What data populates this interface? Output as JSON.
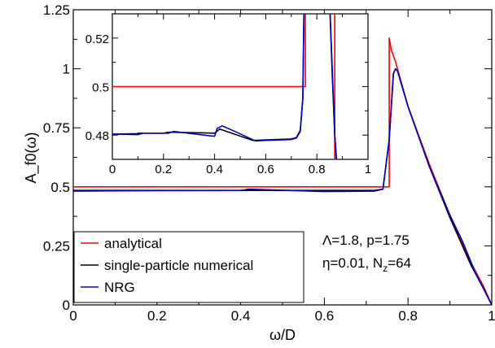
{
  "chart_data": {
    "type": "line",
    "xlabel": "ω/D",
    "ylabel": "A_f0(ω)",
    "xlim": [
      0,
      1
    ],
    "ylim": [
      0,
      1.25
    ],
    "xticks": [
      "0",
      "0.2",
      "0.4",
      "0.6",
      "0.8",
      "1"
    ],
    "yticks": [
      "0",
      "0.25",
      "0.5",
      "0.75",
      "1",
      "1.25"
    ],
    "legend_position": "bottom-left",
    "annotations": {
      "line1": "Λ=1.8, p=1.75",
      "line2_eta": "η=0.01, N",
      "line2_sub": "z",
      "line2_rest": "=64"
    },
    "series": [
      {
        "name": "analytical",
        "color": "#ff0000",
        "x": [
          0,
          0.755,
          0.755,
          0.76,
          0.77,
          0.8,
          0.85,
          0.9,
          0.95,
          0.98,
          1.0
        ],
        "y": [
          0.5,
          0.5,
          1.13,
          1.08,
          1.03,
          0.84,
          0.6,
          0.38,
          0.18,
          0.08,
          0.0
        ]
      },
      {
        "name": "single-particle numerical",
        "color": "#000000",
        "x": [
          0,
          0.72,
          0.74,
          0.755,
          0.765,
          0.77,
          0.775,
          0.8,
          0.85,
          0.9,
          0.95,
          0.98,
          1.0
        ],
        "y": [
          0.485,
          0.485,
          0.49,
          0.7,
          0.98,
          1.0,
          0.99,
          0.84,
          0.59,
          0.37,
          0.17,
          0.07,
          0.0
        ]
      },
      {
        "name": "NRG",
        "color": "#0000cc",
        "x": [
          0,
          0.2,
          0.4,
          0.42,
          0.6,
          0.72,
          0.74,
          0.755,
          0.765,
          0.77,
          0.775,
          0.8,
          0.85,
          0.9,
          0.93,
          0.96,
          0.98,
          1.0
        ],
        "y": [
          0.482,
          0.484,
          0.485,
          0.49,
          0.48,
          0.482,
          0.49,
          0.7,
          0.98,
          1.0,
          0.99,
          0.84,
          0.59,
          0.38,
          0.27,
          0.14,
          0.07,
          0.0
        ]
      }
    ],
    "inset": {
      "xlim": [
        0,
        1
      ],
      "ylim": [
        0.47,
        0.53
      ],
      "xticks": [
        "0",
        "0.2",
        "0.4",
        "0.6",
        "0.8",
        "1"
      ],
      "yticks": [
        "0.48",
        "0.5",
        "0.52"
      ],
      "series": [
        {
          "name": "analytical",
          "color": "#ff0000",
          "x": [
            0,
            0.755,
            0.755,
            0.87,
            0.87
          ],
          "y": [
            0.5,
            0.5,
            0.535,
            0.535,
            0.465
          ]
        },
        {
          "name": "single-particle numerical",
          "color": "#000000",
          "x": [
            0,
            0.1,
            0.1,
            0.2,
            0.22,
            0.4,
            0.42,
            0.55,
            0.7,
            0.72,
            0.735,
            0.745,
            0.75,
            0.85,
            0.86,
            0.87,
            0.88
          ],
          "y": [
            0.4804,
            0.4806,
            0.4808,
            0.4808,
            0.4812,
            0.4808,
            0.4825,
            0.4778,
            0.4784,
            0.479,
            0.482,
            0.495,
            0.535,
            0.535,
            0.505,
            0.48,
            0.465
          ]
        },
        {
          "name": "NRG",
          "color": "#0000cc",
          "x": [
            0,
            0.1,
            0.12,
            0.22,
            0.24,
            0.4,
            0.41,
            0.43,
            0.48,
            0.56,
            0.6,
            0.7,
            0.72,
            0.735,
            0.745,
            0.75,
            0.85,
            0.86,
            0.87,
            0.88
          ],
          "y": [
            0.4804,
            0.4802,
            0.4808,
            0.4808,
            0.4815,
            0.4795,
            0.4828,
            0.4838,
            0.4815,
            0.4776,
            0.4778,
            0.4782,
            0.4788,
            0.4815,
            0.495,
            0.535,
            0.535,
            0.508,
            0.48,
            0.465
          ]
        }
      ]
    }
  }
}
